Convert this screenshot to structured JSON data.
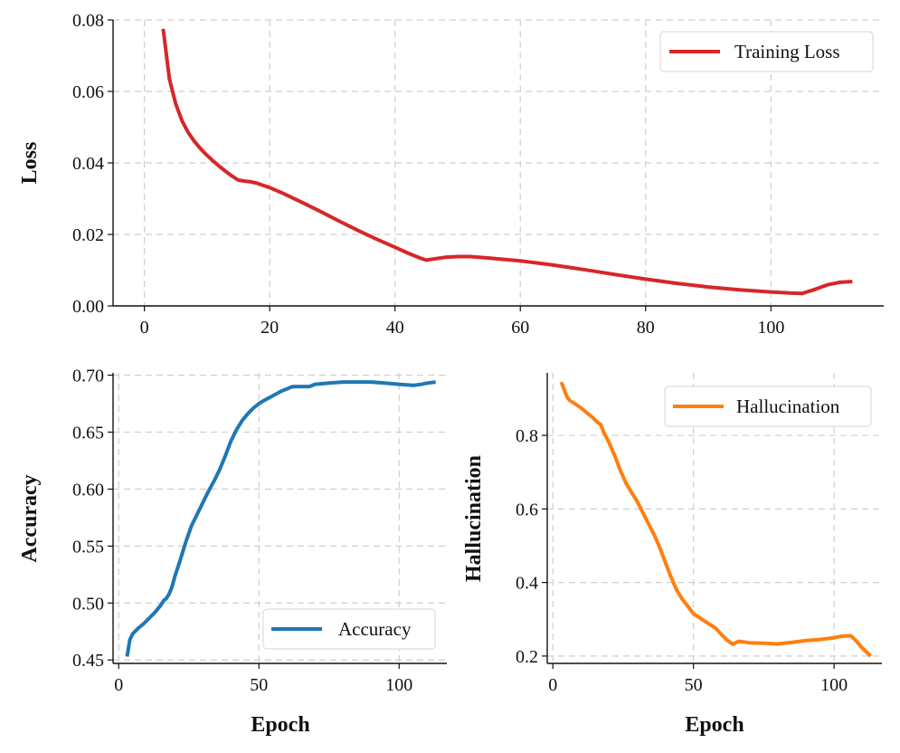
{
  "chart_data": [
    {
      "id": "loss",
      "type": "line",
      "title": "",
      "xlabel": "",
      "ylabel": "Loss",
      "xlim": [
        -5,
        118
      ],
      "ylim": [
        0,
        0.08
      ],
      "xticks": [
        0,
        20,
        40,
        60,
        80,
        100
      ],
      "yticks": [
        0.0,
        0.02,
        0.04,
        0.06,
        0.08
      ],
      "ytick_labels": [
        "0.00",
        "0.02",
        "0.04",
        "0.06",
        "0.08"
      ],
      "legend_position": "top-right",
      "series": [
        {
          "name": "Training Loss",
          "color": "#d62728",
          "x": [
            3,
            4,
            5,
            6,
            7,
            8,
            9,
            10,
            11,
            12,
            13,
            14,
            15,
            16,
            17,
            18,
            20,
            22,
            25,
            28,
            31,
            34,
            37,
            40,
            42,
            44,
            45,
            46,
            48,
            50,
            52,
            55,
            60,
            65,
            70,
            75,
            80,
            85,
            90,
            95,
            100,
            103,
            105,
            107,
            109,
            111,
            113
          ],
          "y": [
            0.0775,
            0.0635,
            0.0565,
            0.0518,
            0.0485,
            0.046,
            0.0439,
            0.0421,
            0.0405,
            0.039,
            0.0376,
            0.0363,
            0.0352,
            0.0349,
            0.0347,
            0.0343,
            0.0331,
            0.0316,
            0.0291,
            0.0265,
            0.0238,
            0.0212,
            0.0187,
            0.0164,
            0.0148,
            0.0134,
            0.0128,
            0.0131,
            0.0136,
            0.0138,
            0.0138,
            0.0134,
            0.0126,
            0.0115,
            0.0102,
            0.0088,
            0.0075,
            0.0063,
            0.0053,
            0.0045,
            0.0039,
            0.0036,
            0.0035,
            0.0046,
            0.0059,
            0.0066,
            0.0068
          ]
        }
      ]
    },
    {
      "id": "accuracy",
      "type": "line",
      "title": "",
      "xlabel": "Epoch",
      "ylabel": "Accuracy",
      "xlim": [
        -2,
        117
      ],
      "ylim": [
        0.447,
        0.702
      ],
      "xticks": [
        0,
        50,
        100
      ],
      "yticks": [
        0.45,
        0.5,
        0.55,
        0.6,
        0.65,
        0.7
      ],
      "ytick_labels": [
        "0.45",
        "0.50",
        "0.55",
        "0.60",
        "0.65",
        "0.70"
      ],
      "legend_position": "bottom-right",
      "series": [
        {
          "name": "Accuracy",
          "color": "#1f77b4",
          "x": [
            3,
            4,
            5,
            7,
            9,
            11,
            13,
            15,
            16,
            17,
            18,
            19,
            20,
            22,
            24,
            26,
            28,
            30,
            32,
            34,
            36,
            38,
            40,
            42,
            44,
            46,
            48,
            50,
            52,
            55,
            58,
            60,
            62,
            65,
            68,
            70,
            75,
            80,
            85,
            90,
            95,
            100,
            105,
            108,
            110,
            113
          ],
          "y": [
            0.453,
            0.468,
            0.473,
            0.478,
            0.482,
            0.487,
            0.492,
            0.498,
            0.502,
            0.504,
            0.508,
            0.514,
            0.523,
            0.538,
            0.554,
            0.568,
            0.578,
            0.588,
            0.598,
            0.607,
            0.617,
            0.629,
            0.642,
            0.652,
            0.66,
            0.666,
            0.671,
            0.675,
            0.678,
            0.682,
            0.686,
            0.688,
            0.69,
            0.69,
            0.69,
            0.692,
            0.693,
            0.694,
            0.694,
            0.694,
            0.693,
            0.692,
            0.691,
            0.692,
            0.693,
            0.694
          ]
        }
      ]
    },
    {
      "id": "hallucination",
      "type": "line",
      "title": "",
      "xlabel": "Epoch",
      "ylabel": "Hallucination",
      "xlim": [
        -2,
        117
      ],
      "ylim": [
        0.18,
        0.97
      ],
      "xticks": [
        0,
        50,
        100
      ],
      "yticks": [
        0.2,
        0.4,
        0.6,
        0.8
      ],
      "ytick_labels": [
        "0.2",
        "0.4",
        "0.6",
        "0.8"
      ],
      "legend_position": "top-right",
      "series": [
        {
          "name": "Hallucination",
          "color": "#ff7f0e",
          "x": [
            3,
            4,
            5,
            6,
            8,
            10,
            12,
            14,
            16,
            17,
            18,
            20,
            22,
            24,
            26,
            28,
            30,
            32,
            34,
            36,
            38,
            40,
            42,
            44,
            46,
            48,
            50,
            52,
            55,
            58,
            60,
            62,
            64,
            66,
            68,
            70,
            75,
            80,
            85,
            90,
            95,
            100,
            103,
            106,
            108,
            110,
            113
          ],
          "y": [
            0.945,
            0.925,
            0.905,
            0.895,
            0.885,
            0.875,
            0.862,
            0.85,
            0.835,
            0.83,
            0.81,
            0.78,
            0.745,
            0.705,
            0.67,
            0.645,
            0.62,
            0.59,
            0.56,
            0.53,
            0.495,
            0.455,
            0.415,
            0.38,
            0.355,
            0.335,
            0.315,
            0.305,
            0.29,
            0.275,
            0.258,
            0.243,
            0.232,
            0.24,
            0.238,
            0.236,
            0.235,
            0.233,
            0.237,
            0.242,
            0.245,
            0.25,
            0.254,
            0.255,
            0.24,
            0.222,
            0.2
          ]
        }
      ]
    }
  ]
}
